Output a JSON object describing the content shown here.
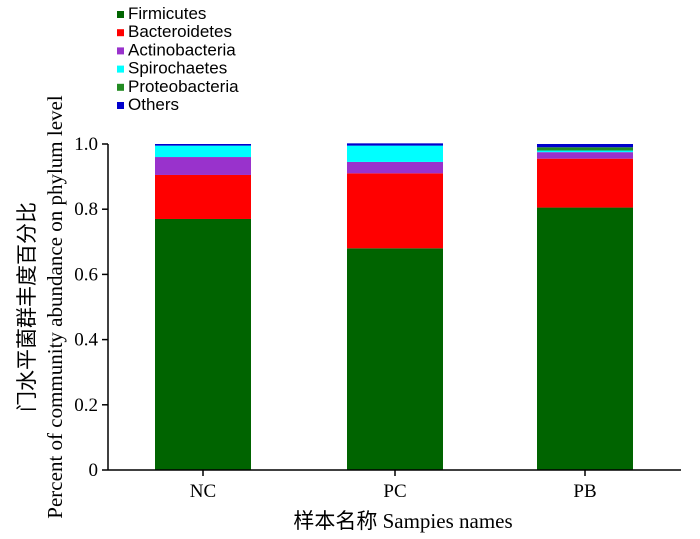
{
  "chart_data": {
    "type": "bar",
    "stacked": true,
    "categories": [
      "NC",
      "PC",
      "PB"
    ],
    "series": [
      {
        "name": "Firmicutes",
        "color": "#006400",
        "values": [
          0.77,
          0.68,
          0.805
        ]
      },
      {
        "name": "Bacteroidetes",
        "color": "#ff0000",
        "values": [
          0.135,
          0.23,
          0.15
        ]
      },
      {
        "name": "Actinobacteria",
        "color": "#9932cc",
        "values": [
          0.055,
          0.035,
          0.02
        ]
      },
      {
        "name": "Spirochaetes",
        "color": "#00ffff",
        "values": [
          0.035,
          0.05,
          0.005
        ]
      },
      {
        "name": "Proteobacteria",
        "color": "#228b22",
        "values": [
          0.0,
          0.0,
          0.01
        ]
      },
      {
        "name": "Others",
        "color": "#0000cd",
        "values": [
          0.005,
          0.007,
          0.01
        ]
      }
    ],
    "ylim": [
      0,
      1.0
    ],
    "yticks": [
      "0",
      "0.2",
      "0.4",
      "0.6",
      "0.8",
      "1.0"
    ],
    "ylabel_line1": "门水平菌群丰度百分比",
    "ylabel_line2": "Percent of community abundance on phylum level",
    "xlabel": "样本名称  Sampies names",
    "legend_position": "top-left",
    "grid": false
  }
}
